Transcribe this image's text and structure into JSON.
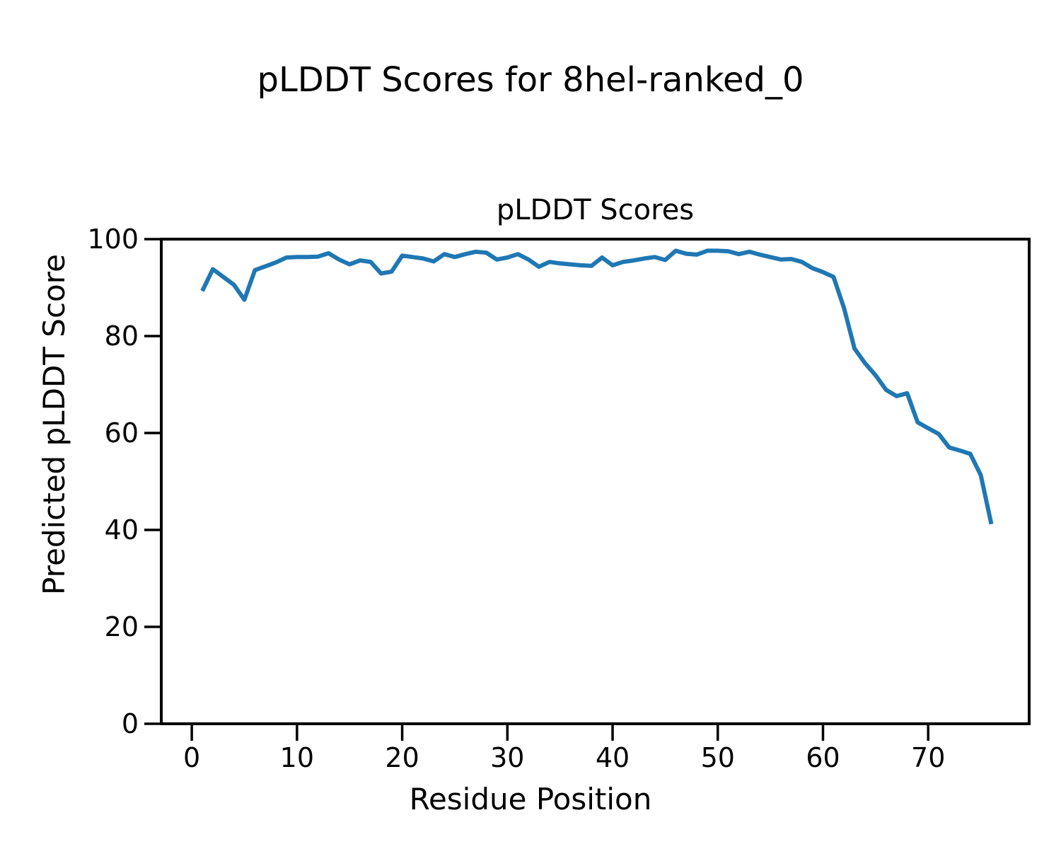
{
  "figure": {
    "suptitle": "pLDDT Scores for 8hel-ranked_0",
    "background_color": "#ffffff",
    "text_color": "#000000"
  },
  "chart_data": {
    "type": "line",
    "title": "pLDDT Scores",
    "xlabel": "Residue Position",
    "ylabel": "Predicted pLDDT Score",
    "legend_position": "none",
    "grid": false,
    "line_color": "#1f77b4",
    "spine_color": "#000000",
    "xlim": [
      -2.9,
      79.6
    ],
    "ylim": [
      0,
      100
    ],
    "x_ticks": [
      0,
      10,
      20,
      30,
      40,
      50,
      60,
      70
    ],
    "y_ticks": [
      0,
      20,
      40,
      60,
      80,
      100
    ],
    "series_name": "pLDDT score per residue",
    "x": [
      1,
      2,
      3,
      4,
      5,
      6,
      7,
      8,
      9,
      10,
      11,
      12,
      13,
      14,
      15,
      16,
      17,
      18,
      19,
      20,
      21,
      22,
      23,
      24,
      25,
      26,
      27,
      28,
      29,
      30,
      31,
      32,
      33,
      34,
      35,
      36,
      37,
      38,
      39,
      40,
      41,
      42,
      43,
      44,
      45,
      46,
      47,
      48,
      49,
      50,
      51,
      52,
      53,
      54,
      55,
      56,
      57,
      58,
      59,
      60,
      61,
      62,
      63,
      64,
      65,
      66,
      67,
      68,
      69,
      70,
      71,
      72,
      73,
      74,
      75,
      76
    ],
    "y": [
      89.3,
      93.8,
      92.2,
      90.6,
      87.5,
      93.6,
      94.4,
      95.2,
      96.2,
      96.3,
      96.3,
      96.4,
      97.1,
      95.8,
      94.8,
      95.6,
      95.3,
      92.9,
      93.3,
      96.6,
      96.3,
      96.0,
      95.4,
      96.9,
      96.3,
      96.9,
      97.4,
      97.2,
      95.8,
      96.2,
      96.9,
      95.8,
      94.3,
      95.3,
      95.0,
      94.8,
      94.6,
      94.5,
      96.2,
      94.6,
      95.3,
      95.6,
      96.0,
      96.3,
      95.7,
      97.6,
      97.0,
      96.8,
      97.6,
      97.6,
      97.5,
      96.9,
      97.4,
      96.8,
      96.3,
      95.8,
      95.9,
      95.3,
      94.0,
      93.2,
      92.2,
      85.8,
      77.4,
      74.4,
      71.9,
      68.9,
      67.6,
      68.2,
      62.2,
      61.0,
      59.8,
      57.0,
      56.4,
      55.7,
      51.3,
      41.2
    ]
  }
}
